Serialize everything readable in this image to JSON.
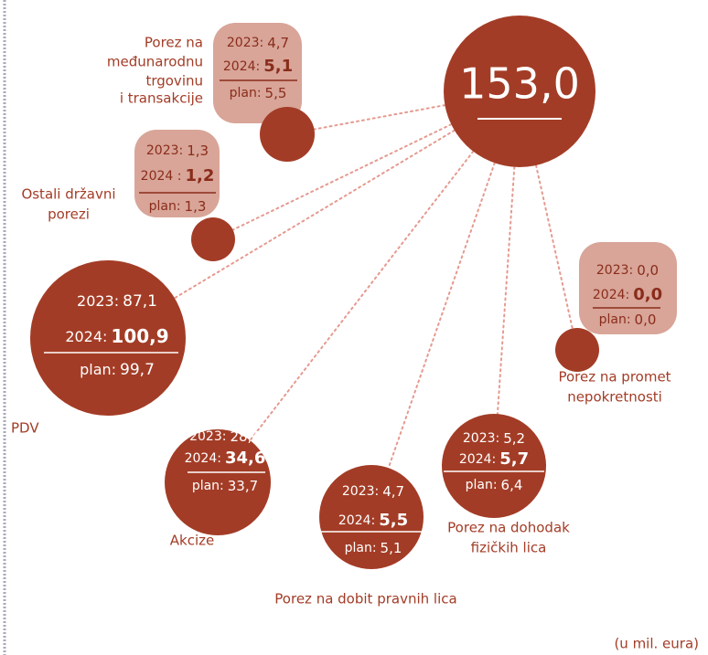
{
  "total": "153,0",
  "note": "(u mil. eura)",
  "nodes": [
    {
      "label": [
        "Porez na",
        "međunarodnu",
        "trgovinu",
        "i transakcije"
      ],
      "rows": [
        {
          "year": "2023:",
          "value": "4,7"
        },
        {
          "year": "2024:",
          "value": "5,1"
        },
        {
          "year": "plan:",
          "value": "5,5"
        }
      ]
    },
    {
      "label": [
        "Ostali državni",
        "porezi"
      ],
      "rows": [
        {
          "year": "2023:",
          "value": "1,3"
        },
        {
          "year": "2024 :",
          "value": "1,2"
        },
        {
          "year": "plan:",
          "value": "1,3"
        }
      ]
    },
    {
      "label": [
        "PDV"
      ],
      "rows": [
        {
          "year": "2023:",
          "value": "87,1"
        },
        {
          "year": "2024:",
          "value": "100,9"
        },
        {
          "year": "plan:",
          "value": "99,7"
        }
      ]
    },
    {
      "label": [
        "Akcize"
      ],
      "rows": [
        {
          "year": "2023:",
          "value": "28,4"
        },
        {
          "year": "2024:",
          "value": "34,6"
        },
        {
          "year": "plan:",
          "value": "33,7"
        }
      ]
    },
    {
      "label": [
        "Porez na dobit pravnih lica"
      ],
      "rows": [
        {
          "year": "2023:",
          "value": "4,7"
        },
        {
          "year": "2024:",
          "value": "5,5"
        },
        {
          "year": "plan:",
          "value": "5,1"
        }
      ]
    },
    {
      "label": [
        "Porez na dohodak",
        "fizičkih lica"
      ],
      "rows": [
        {
          "year": "2023:",
          "value": "5,2"
        },
        {
          "year": "2024:",
          "value": "5,7"
        },
        {
          "year": "plan:",
          "value": "6,4"
        }
      ]
    },
    {
      "label": [
        "Porez na promet",
        "nepokretnosti"
      ],
      "rows": [
        {
          "year": "2023:",
          "value": "0,0"
        },
        {
          "year": "2024:",
          "value": "0,0"
        },
        {
          "year": "plan:",
          "value": "0,0"
        }
      ]
    }
  ]
}
